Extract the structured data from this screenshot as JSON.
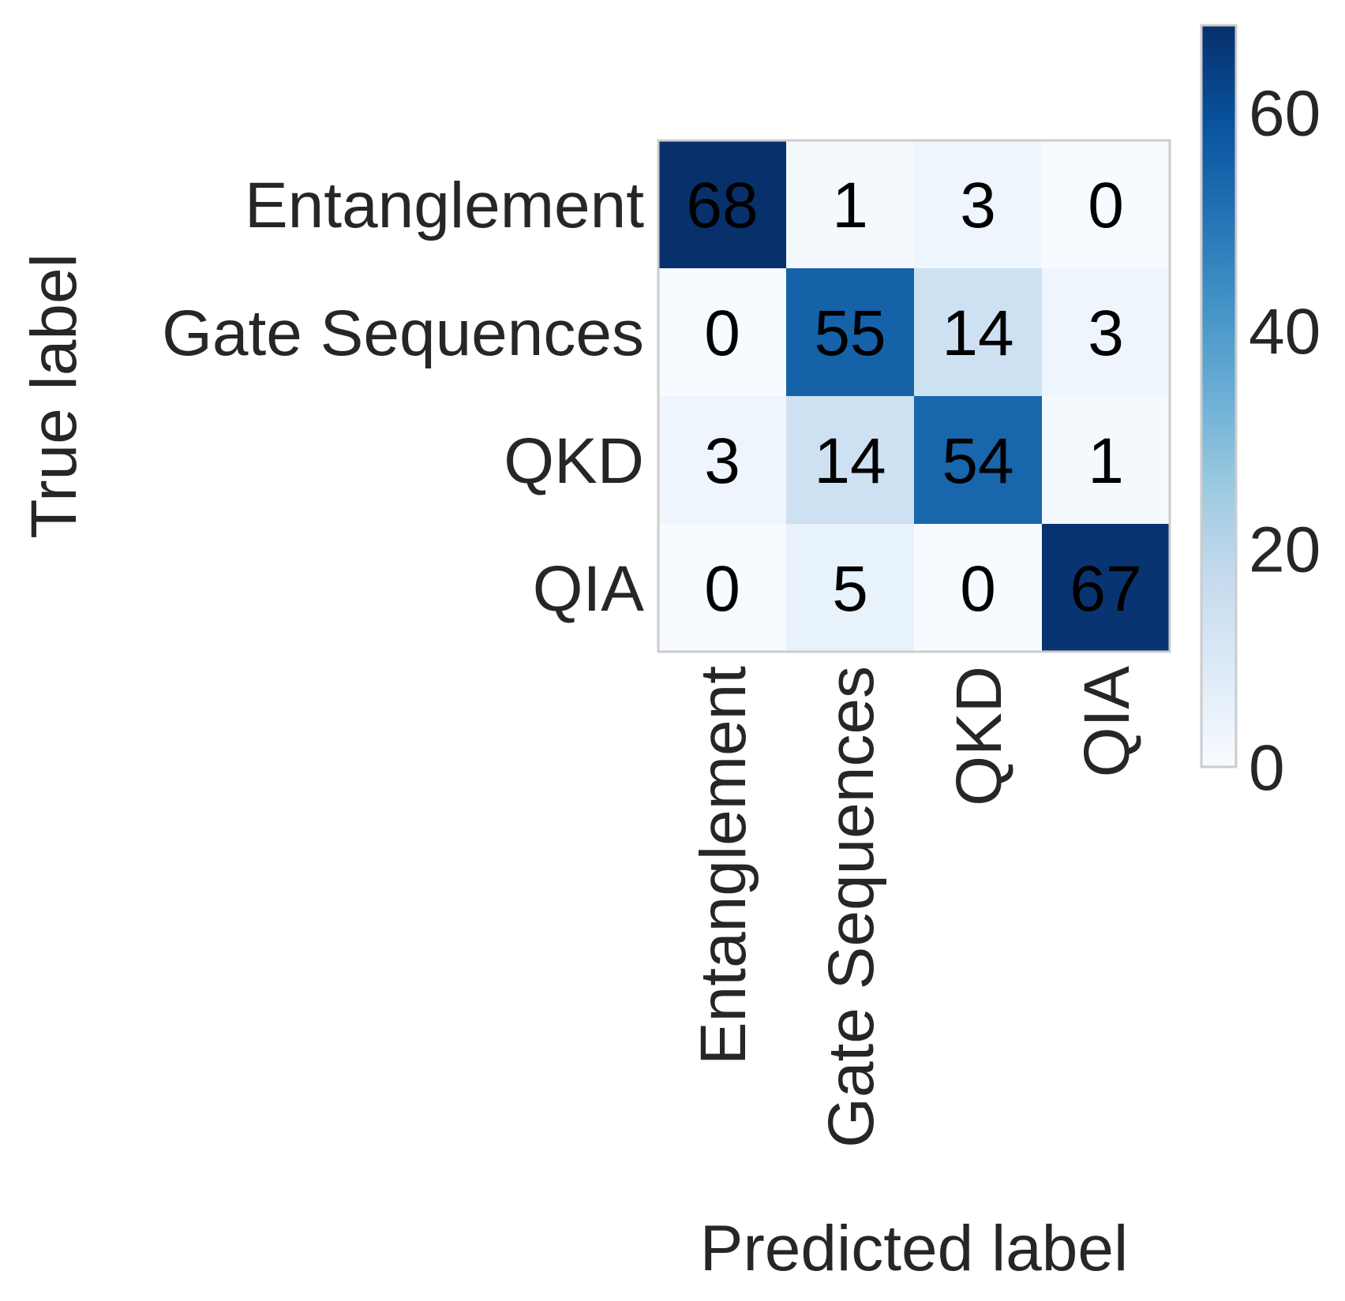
{
  "chart_data": {
    "type": "heatmap",
    "title": "",
    "xlabel": "Predicted label",
    "ylabel": "True label",
    "x_categories": [
      "Entanglement",
      "Gate Sequences",
      "QKD",
      "QIA"
    ],
    "y_categories": [
      "Entanglement",
      "Gate Sequences",
      "QKD",
      "QIA"
    ],
    "values": [
      [
        68,
        1,
        3,
        0
      ],
      [
        0,
        55,
        14,
        3
      ],
      [
        3,
        14,
        54,
        1
      ],
      [
        0,
        5,
        0,
        67
      ]
    ],
    "colormap": "Blues",
    "colorbar": {
      "min": 0,
      "max": 68,
      "ticks": [
        0,
        20,
        40,
        60
      ]
    },
    "grid": false
  }
}
